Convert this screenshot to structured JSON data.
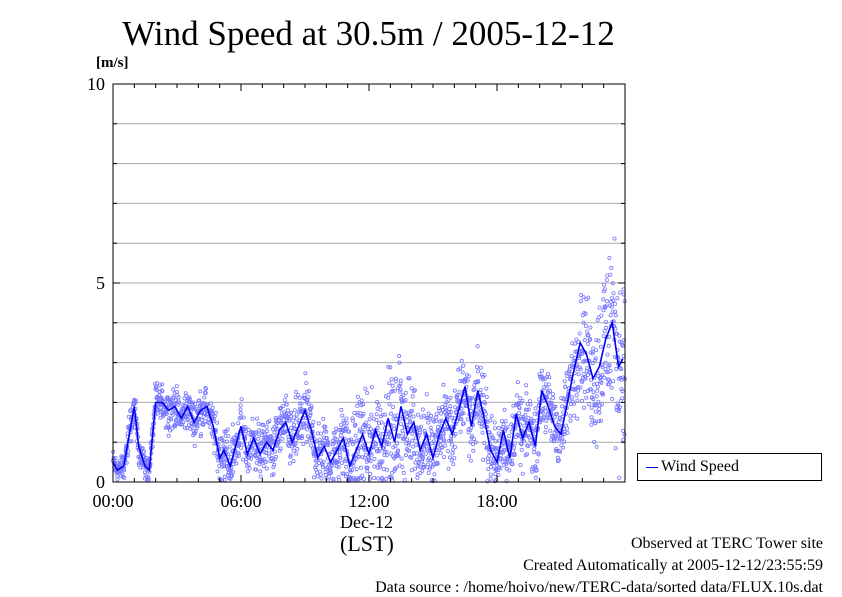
{
  "chart_data": {
    "type": "scatter",
    "title": "Wind Speed at 30.5m / 2005-12-12",
    "ylabel": "[m/s]",
    "ylim": [
      0,
      10
    ],
    "yticks": [
      "0",
      "5",
      "10"
    ],
    "xlim_hours": [
      0,
      24
    ],
    "xticks": [
      "00:00",
      "06:00",
      "12:00",
      "18:00"
    ],
    "x_date_label": "Dec-12",
    "x_timezone_label": "(LST)",
    "grid": true,
    "legend_placement": "right",
    "series": [
      {
        "name": "Wind Speed",
        "color": "#0000ee",
        "point_color": "#7777ff",
        "hour": [
          0.0,
          0.2,
          0.5,
          0.8,
          1.0,
          1.2,
          1.5,
          1.7,
          2.0,
          2.3,
          2.6,
          2.9,
          3.2,
          3.5,
          3.8,
          4.1,
          4.4,
          4.7,
          5.0,
          5.2,
          5.5,
          5.8,
          6.0,
          6.3,
          6.6,
          6.9,
          7.2,
          7.5,
          7.8,
          8.1,
          8.4,
          8.7,
          9.0,
          9.3,
          9.6,
          9.9,
          10.2,
          10.5,
          10.8,
          11.1,
          11.4,
          11.7,
          12.0,
          12.3,
          12.6,
          12.9,
          13.2,
          13.5,
          13.8,
          14.1,
          14.4,
          14.7,
          15.0,
          15.3,
          15.6,
          15.9,
          16.2,
          16.5,
          16.8,
          17.1,
          17.4,
          17.7,
          18.0,
          18.3,
          18.6,
          18.9,
          19.2,
          19.5,
          19.8,
          20.1,
          20.4,
          20.7,
          21.0,
          21.3,
          21.6,
          21.9,
          22.2,
          22.5,
          22.8,
          23.1,
          23.4,
          23.7,
          23.9
        ],
        "mean_speed": [
          0.5,
          0.3,
          0.4,
          1.3,
          1.9,
          0.9,
          0.4,
          0.3,
          2.0,
          2.0,
          1.8,
          1.9,
          1.6,
          1.9,
          1.5,
          1.8,
          1.9,
          1.4,
          0.6,
          0.8,
          0.4,
          1.0,
          1.4,
          0.7,
          1.1,
          0.7,
          1.0,
          0.8,
          1.3,
          1.5,
          1.0,
          1.4,
          1.8,
          1.3,
          0.6,
          0.9,
          0.5,
          0.8,
          1.1,
          0.4,
          0.8,
          1.2,
          0.7,
          1.3,
          0.9,
          1.6,
          1.0,
          1.9,
          1.2,
          1.5,
          0.8,
          1.2,
          0.6,
          1.2,
          1.6,
          1.2,
          1.8,
          2.4,
          1.4,
          2.3,
          1.6,
          0.8,
          0.5,
          1.3,
          0.6,
          1.7,
          1.1,
          1.5,
          0.9,
          2.3,
          1.9,
          1.4,
          1.2,
          2.0,
          2.8,
          3.5,
          3.2,
          2.6,
          2.9,
          3.6,
          4.0,
          2.9,
          3.1
        ],
        "spread": [
          0.2,
          0.2,
          0.2,
          0.3,
          0.3,
          0.3,
          0.2,
          0.2,
          0.3,
          0.3,
          0.3,
          0.3,
          0.3,
          0.3,
          0.3,
          0.3,
          0.3,
          0.3,
          0.4,
          0.4,
          0.4,
          0.4,
          0.4,
          0.4,
          0.4,
          0.4,
          0.4,
          0.4,
          0.4,
          0.4,
          0.5,
          0.5,
          0.5,
          0.5,
          0.5,
          0.5,
          0.5,
          0.5,
          0.6,
          0.6,
          0.7,
          0.7,
          0.7,
          0.7,
          0.8,
          0.8,
          0.9,
          0.9,
          0.8,
          0.7,
          0.6,
          0.6,
          0.6,
          0.6,
          0.6,
          0.6,
          0.6,
          0.6,
          0.6,
          0.6,
          0.6,
          0.5,
          0.5,
          0.5,
          0.5,
          0.5,
          0.5,
          0.5,
          0.5,
          0.5,
          0.5,
          0.5,
          0.5,
          0.6,
          0.7,
          0.8,
          0.9,
          1.0,
          1.2,
          1.4,
          1.5,
          1.3,
          1.2
        ]
      }
    ]
  },
  "footer": {
    "line1": "Observed at TERC Tower site",
    "line2": "Created Automatically at 2005-12-12/23:55:59",
    "line3": "Data source : /home/hoivo/new/TERC-data/sorted  data/FLUX.10s.dat"
  }
}
